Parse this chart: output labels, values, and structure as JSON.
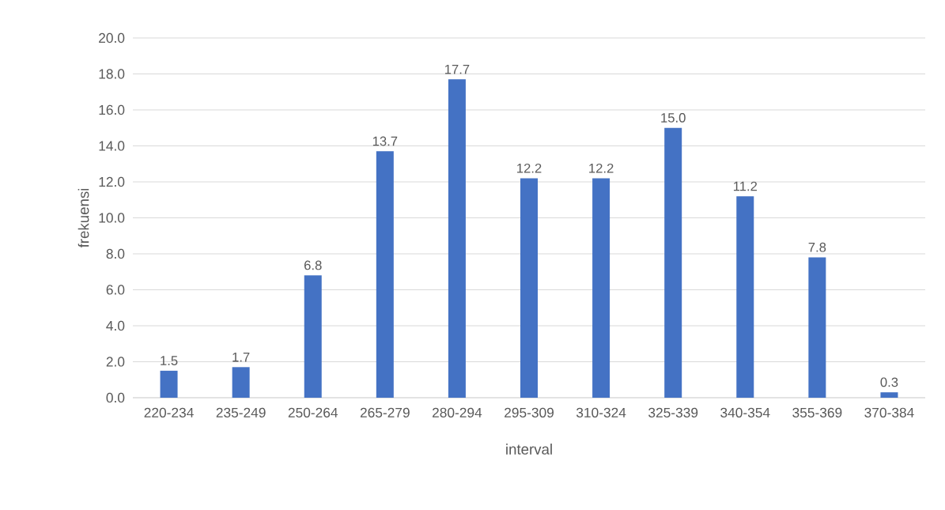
{
  "chart_data": {
    "type": "bar",
    "categories": [
      "220-234",
      "235-249",
      "250-264",
      "265-279",
      "280-294",
      "295-309",
      "310-324",
      "325-339",
      "340-354",
      "355-369",
      "370-384"
    ],
    "values": [
      1.5,
      1.7,
      6.8,
      13.7,
      17.7,
      12.2,
      12.2,
      15.0,
      11.2,
      7.8,
      0.3
    ],
    "value_labels": [
      "1.5",
      "1.7",
      "6.8",
      "13.7",
      "17.7",
      "12.2",
      "12.2",
      "15.0",
      "11.2",
      "7.8",
      "0.3"
    ],
    "color": "#4472c4",
    "xlabel": "interval",
    "ylabel": "frekuensi",
    "ylim": [
      0,
      20
    ],
    "yticks": [
      {
        "value": 0,
        "label": "0.0"
      },
      {
        "value": 2,
        "label": "2.0"
      },
      {
        "value": 4,
        "label": "4.0"
      },
      {
        "value": 6,
        "label": "6.0"
      },
      {
        "value": 8,
        "label": "8.0"
      },
      {
        "value": 10,
        "label": "10.0"
      },
      {
        "value": 12,
        "label": "12.0"
      },
      {
        "value": 14,
        "label": "14.0"
      },
      {
        "value": 16,
        "label": "16.0"
      },
      {
        "value": 18,
        "label": "18.0"
      },
      {
        "value": 20,
        "label": "20.0"
      }
    ],
    "grid": "y"
  }
}
